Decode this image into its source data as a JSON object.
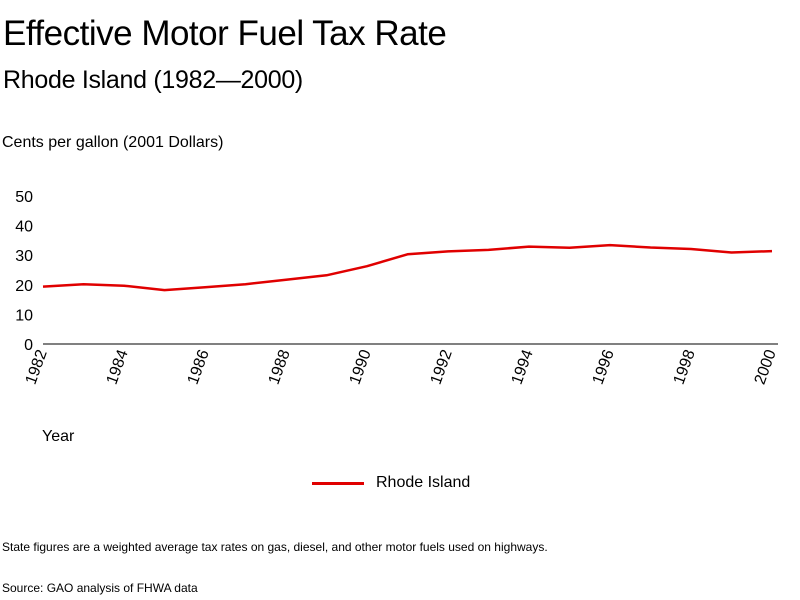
{
  "chart_data": {
    "type": "line",
    "title": "Effective Motor Fuel Tax Rate",
    "subtitle": "Rhode Island (1982—2000)",
    "ylabel": "Cents per gallon (2001 Dollars)",
    "xlabel": "Year",
    "ylim": [
      0,
      50
    ],
    "yticks": [
      "0",
      "10",
      "20",
      "30",
      "40",
      "50"
    ],
    "xlim": [
      1982,
      2000
    ],
    "xticks": [
      "1982",
      "1984",
      "1986",
      "1988",
      "1990",
      "1992",
      "1994",
      "1996",
      "1998",
      "2000"
    ],
    "grid": false,
    "legend_position": "bottom",
    "series": [
      {
        "name": "Rhode Island",
        "color": "#e00000",
        "x": [
          1982,
          1983,
          1984,
          1985,
          1986,
          1987,
          1988,
          1989,
          1990,
          1991,
          1992,
          1993,
          1994,
          1995,
          1996,
          1997,
          1998,
          1999,
          2000
        ],
        "values": [
          19.4,
          20.2,
          19.7,
          18.2,
          19.2,
          20.2,
          21.7,
          23.2,
          26.3,
          30.3,
          31.3,
          31.8,
          32.9,
          32.5,
          33.4,
          32.6,
          32.1,
          30.9,
          31.4
        ]
      }
    ]
  },
  "footnote": "State figures are a weighted average tax rates on gas, diesel, and other motor fuels used on highways.",
  "source": "Source: GAO analysis of FHWA data"
}
